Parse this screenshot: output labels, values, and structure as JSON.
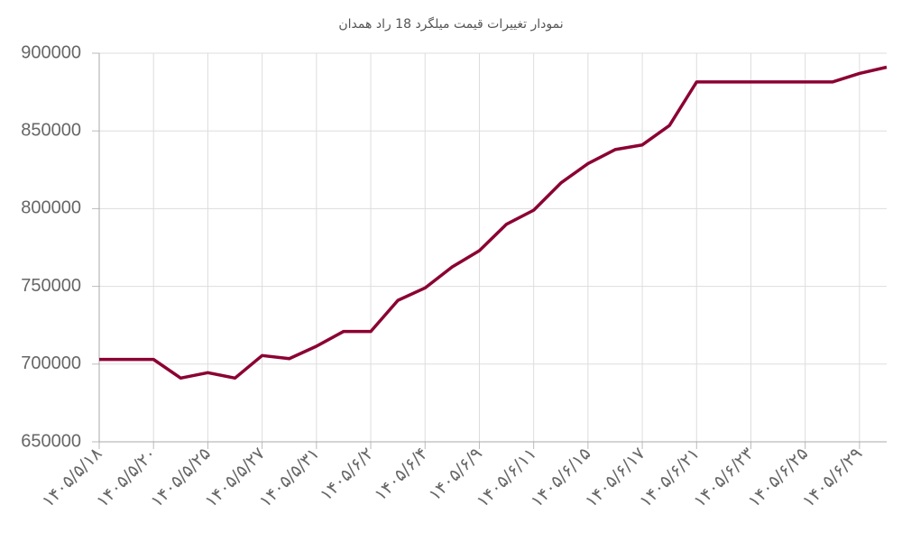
{
  "chart_data": {
    "type": "line",
    "title": "نمودار تغییرات قیمت میلگرد 18 راد همدان",
    "categories": [
      "۱۴۰۵/۵/۱۸",
      null,
      "۱۴۰۵/۵/۲۰",
      null,
      "۱۴۰۵/۵/۲۵",
      null,
      "۱۴۰۵/۵/۲۷",
      null,
      "۱۴۰۵/۵/۳۱",
      null,
      "۱۴۰۵/۶/۲",
      null,
      "۱۴۰۵/۶/۴",
      null,
      "۱۴۰۵/۶/۹",
      null,
      "۱۴۰۵/۶/۱۱",
      null,
      "۱۴۰۵/۶/۱۵",
      null,
      "۱۴۰۵/۶/۱۷",
      null,
      "۱۴۰۵/۶/۲۱",
      null,
      "۱۴۰۵/۶/۲۳",
      null,
      "۱۴۰۵/۶/۲۵",
      null,
      "۱۴۰۵/۶/۲۹",
      null
    ],
    "series": [
      {
        "color": "#8b0033",
        "values": [
          703000,
          703000,
          703000,
          691000,
          694500,
          691000,
          705500,
          703500,
          711500,
          721000,
          721000,
          741000,
          749000,
          762500,
          773000,
          790000,
          799000,
          816500,
          829000,
          838000,
          841000,
          853500,
          881500,
          881500,
          881500,
          881500,
          881500,
          881500,
          887000,
          891000
        ]
      }
    ],
    "ylim": [
      650000,
      900000
    ],
    "yticks": [
      650000,
      700000,
      750000,
      800000,
      850000,
      900000
    ],
    "grid": true
  }
}
